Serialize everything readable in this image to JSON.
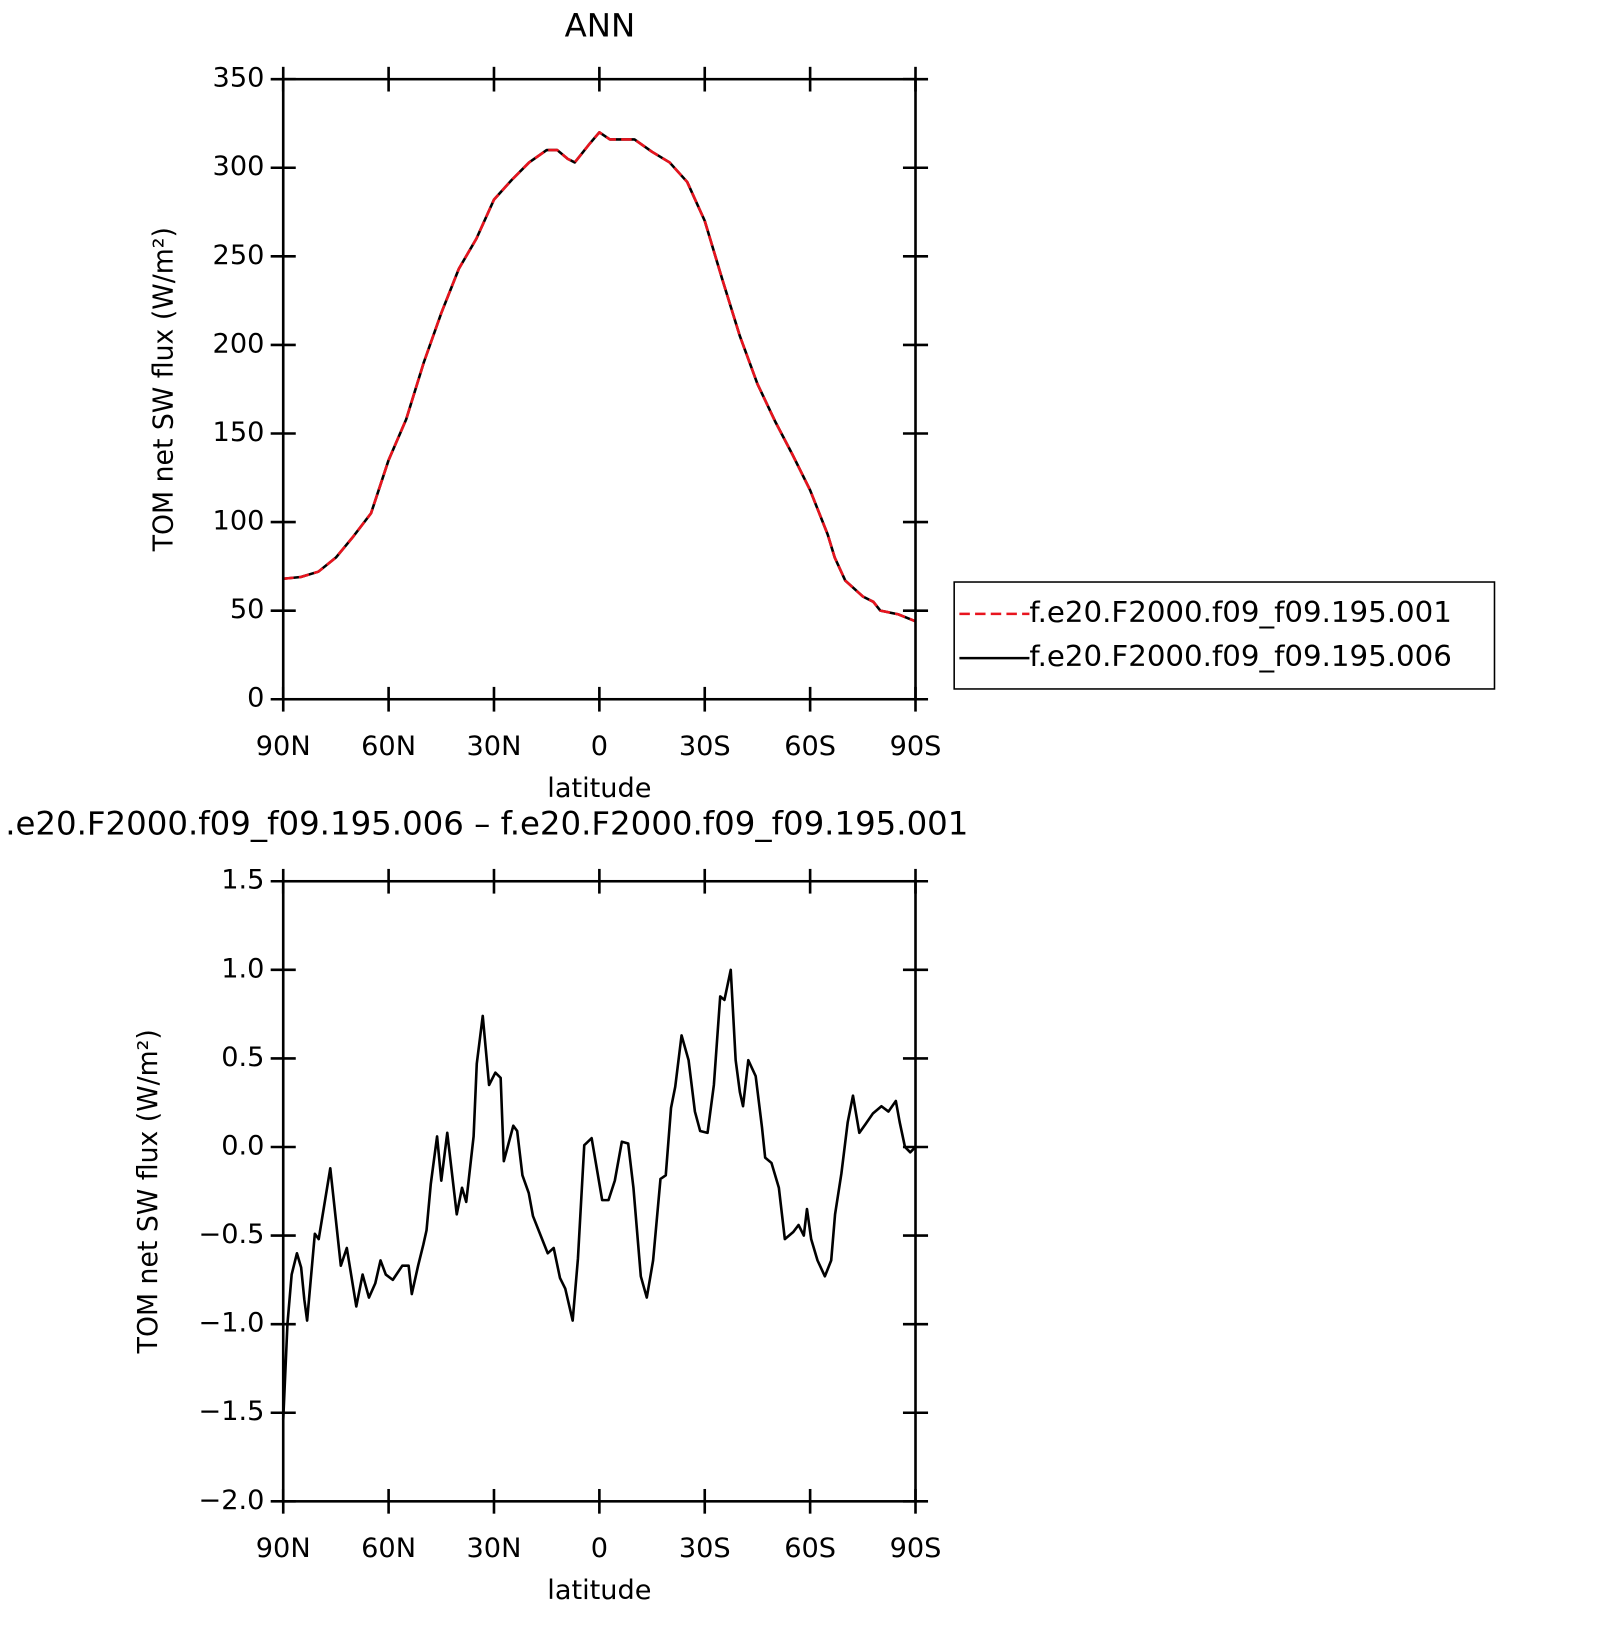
{
  "chart_data": [
    {
      "type": "line",
      "title": "ANN",
      "x_label": "latitude",
      "y_label": "TOM net SW flux (W/m²)",
      "xlim": [
        90,
        -90
      ],
      "xticks": [
        {
          "value": 90,
          "label": "90N"
        },
        {
          "value": 60,
          "label": "60N"
        },
        {
          "value": 30,
          "label": "30N"
        },
        0,
        {
          "value": -30,
          "label": "30S"
        },
        {
          "value": -60,
          "label": "60S"
        },
        {
          "value": -90,
          "label": "90S"
        }
      ],
      "ylim": [
        0,
        350
      ],
      "yticks": [
        0,
        50,
        100,
        150,
        200,
        250,
        300,
        350
      ],
      "legend": "right",
      "x": [
        90,
        85,
        80,
        75,
        70,
        65,
        60,
        55,
        50,
        45,
        40,
        35,
        30,
        25,
        20,
        15,
        12,
        9,
        7,
        3,
        0,
        -3,
        -7,
        -10,
        -15,
        -20,
        -25,
        -30,
        -35,
        -40,
        -45,
        -50,
        -55,
        -60,
        -65,
        -67,
        -70,
        -75,
        -78,
        -80,
        -85,
        -90
      ],
      "series": [
        {
          "name": "f.e20.F2000.f09_f09.195.001",
          "color": "#e8141e",
          "linestyle": "dashed",
          "values": [
            68,
            69,
            72,
            80,
            92,
            105,
            135,
            158,
            190,
            218,
            243,
            260,
            282,
            293,
            303,
            310,
            310,
            305,
            303,
            313,
            320,
            316,
            316,
            316,
            309,
            303,
            292,
            270,
            237,
            205,
            178,
            157,
            138,
            118,
            93,
            80,
            67,
            58,
            55,
            50,
            48,
            44
          ]
        },
        {
          "name": "f.e20.F2000.f09_f09.195.006",
          "color": "#000000",
          "linestyle": "solid",
          "values": [
            68,
            69,
            72,
            80,
            92,
            105,
            135,
            158,
            190,
            218,
            243,
            260,
            282,
            293,
            303,
            310,
            310,
            305,
            303,
            313,
            320,
            316,
            316,
            316,
            309,
            303,
            292,
            270,
            237,
            205,
            178,
            157,
            138,
            118,
            93,
            80,
            67,
            58,
            55,
            50,
            48,
            44
          ]
        }
      ]
    },
    {
      "type": "line",
      "title": ".e20.F2000.f09_f09.195.006 – f.e20.F2000.f09_f09.195.001",
      "x_label": "latitude",
      "y_label": "TOM net SW flux (W/m²)",
      "xlim": [
        90,
        -90
      ],
      "xticks": [
        {
          "value": 90,
          "label": "90N"
        },
        {
          "value": 60,
          "label": "60N"
        },
        {
          "value": 30,
          "label": "30N"
        },
        0,
        {
          "value": -30,
          "label": "30S"
        },
        {
          "value": -60,
          "label": "60S"
        },
        {
          "value": -90,
          "label": "90S"
        }
      ],
      "ylim": [
        -2,
        1.5
      ],
      "yticks": [
        {
          "value": -2,
          "label": "−2.0"
        },
        {
          "value": -1.5,
          "label": "−1.5"
        },
        {
          "value": -1,
          "label": "−1.0"
        },
        {
          "value": -0.5,
          "label": "−0.5"
        },
        {
          "value": 0,
          "label": "0.0"
        },
        0.5,
        {
          "value": 1,
          "label": "1.0"
        },
        1.5
      ],
      "x": [
        90,
        88.8,
        87.6,
        86.1,
        84.9,
        84,
        83.2,
        81,
        79.9,
        76.6,
        73.6,
        71.9,
        69.2,
        67.4,
        65.6,
        63.8,
        62.3,
        60.8,
        58.8,
        56.1,
        54.3,
        53.4,
        51.6,
        50.1,
        49.2,
        48,
        46.2,
        45,
        43.3,
        40.6,
        39.1,
        37.9,
        35.8,
        34.9,
        33.2,
        31.4,
        29.6,
        28.1,
        27.2,
        24.5,
        23.4,
        21.9,
        20.1,
        18.9,
        16.5,
        14.7,
        13,
        11.2,
        9.7,
        7.6,
        6.1,
        4.3,
        2.2,
        -0.8,
        -2.6,
        -4.4,
        -6.4,
        -8.2,
        -9.7,
        -11.8,
        -13.5,
        -15.3,
        -17.4,
        -18.9,
        -20.4,
        -21.6,
        -23.4,
        -25.4,
        -27.2,
        -28.7,
        -30.8,
        -32.6,
        -34.4,
        -35.6,
        -37.4,
        -38.8,
        -40,
        -40.9,
        -42.4,
        -44.5,
        -46.3,
        -47.2,
        -49,
        -51.1,
        -52.8,
        -55.2,
        -56.7,
        -58.2,
        -59.1,
        -60.3,
        -62.1,
        -64.2,
        -66,
        -67.1,
        -68.9,
        -70.7,
        -72.2,
        -74,
        -75.8,
        -77.9,
        -80.3,
        -82.3,
        -84.4,
        -85.5,
        -87,
        -88.5,
        -90
      ],
      "series": [
        {
          "color": "#000000",
          "linestyle": "solid",
          "values": [
            -1.54,
            -1,
            -0.72,
            -0.6,
            -0.68,
            -0.86,
            -0.98,
            -0.49,
            -0.52,
            -0.12,
            -0.67,
            -0.57,
            -0.9,
            -0.72,
            -0.85,
            -0.77,
            -0.64,
            -0.72,
            -0.75,
            -0.67,
            -0.67,
            -0.83,
            -0.67,
            -0.55,
            -0.47,
            -0.21,
            0.06,
            -0.19,
            0.08,
            -0.38,
            -0.23,
            -0.31,
            0.06,
            0.47,
            0.74,
            0.35,
            0.42,
            0.39,
            -0.08,
            0.12,
            0.09,
            -0.16,
            -0.26,
            -0.39,
            -0.51,
            -0.6,
            -0.57,
            -0.74,
            -0.8,
            -0.98,
            -0.63,
            0.01,
            0.05,
            -0.3,
            -0.3,
            -0.19,
            0.03,
            0.02,
            -0.23,
            -0.73,
            -0.85,
            -0.64,
            -0.18,
            -0.16,
            0.22,
            0.34,
            0.63,
            0.49,
            0.2,
            0.09,
            0.08,
            0.35,
            0.85,
            0.83,
            1,
            0.49,
            0.31,
            0.23,
            0.49,
            0.4,
            0.11,
            -0.06,
            -0.09,
            -0.23,
            -0.52,
            -0.48,
            -0.44,
            -0.5,
            -0.35,
            -0.52,
            -0.64,
            -0.73,
            -0.64,
            -0.38,
            -0.15,
            0.14,
            0.29,
            0.08,
            0.13,
            0.19,
            0.23,
            0.2,
            0.26,
            0.14,
            0,
            -0.03,
            0
          ]
        }
      ]
    }
  ]
}
